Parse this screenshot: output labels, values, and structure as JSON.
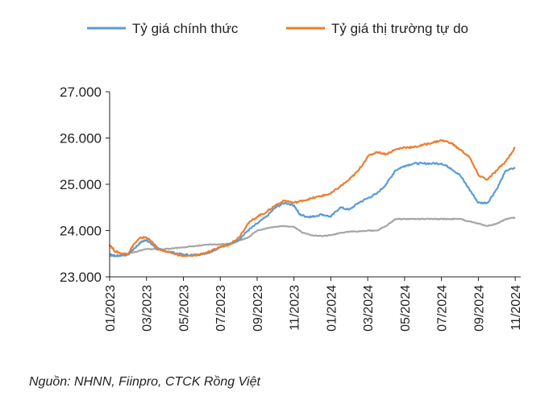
{
  "chart_data": {
    "type": "line",
    "title": "",
    "xlabel": "",
    "ylabel": "",
    "ylim": [
      23000,
      27000
    ],
    "yticks": [
      "23.000",
      "24.000",
      "25.000",
      "26.000",
      "27.000"
    ],
    "ytick_values": [
      23000,
      24000,
      25000,
      26000,
      27000
    ],
    "xticks": [
      "01/2023",
      "03/2023",
      "05/2023",
      "07/2023",
      "09/2023",
      "11/2023",
      "01/2024",
      "03/2024",
      "05/2024",
      "07/2024",
      "09/2024",
      "11/2024"
    ],
    "xtick_values": [
      0,
      2,
      4,
      6,
      8,
      10,
      12,
      14,
      16,
      18,
      20,
      22
    ],
    "x_unit": "month index from 01/2023",
    "legend_position": "top",
    "grid": false,
    "series": [
      {
        "name": "Tỷ giá chính thức",
        "color": "#5b9bd5",
        "points": [
          [
            0,
            23500
          ],
          [
            0.3,
            23450
          ],
          [
            0.7,
            23470
          ],
          [
            1,
            23480
          ],
          [
            1.3,
            23600
          ],
          [
            1.7,
            23750
          ],
          [
            2,
            23800
          ],
          [
            2.3,
            23700
          ],
          [
            2.6,
            23600
          ],
          [
            3,
            23560
          ],
          [
            3.5,
            23520
          ],
          [
            4,
            23480
          ],
          [
            4.5,
            23470
          ],
          [
            5,
            23490
          ],
          [
            5.5,
            23540
          ],
          [
            6,
            23650
          ],
          [
            6.5,
            23700
          ],
          [
            7,
            23800
          ],
          [
            7.5,
            24000
          ],
          [
            8,
            24150
          ],
          [
            8.5,
            24300
          ],
          [
            9,
            24500
          ],
          [
            9.5,
            24600
          ],
          [
            10,
            24550
          ],
          [
            10.3,
            24350
          ],
          [
            10.7,
            24300
          ],
          [
            11,
            24300
          ],
          [
            11.5,
            24350
          ],
          [
            12,
            24300
          ],
          [
            12.5,
            24500
          ],
          [
            13,
            24450
          ],
          [
            13.5,
            24600
          ],
          [
            14,
            24700
          ],
          [
            14.5,
            24800
          ],
          [
            15,
            25000
          ],
          [
            15.5,
            25300
          ],
          [
            16,
            25400
          ],
          [
            16.5,
            25450
          ],
          [
            17,
            25450
          ],
          [
            17.5,
            25450
          ],
          [
            18,
            25450
          ],
          [
            18.5,
            25350
          ],
          [
            19,
            25200
          ],
          [
            19.5,
            24900
          ],
          [
            20,
            24600
          ],
          [
            20.5,
            24600
          ],
          [
            21,
            24900
          ],
          [
            21.5,
            25300
          ],
          [
            22,
            25350
          ]
        ]
      },
      {
        "name": "Tỷ giá thị trường tự do",
        "color": "#ed7d31",
        "points": [
          [
            0,
            23700
          ],
          [
            0.3,
            23550
          ],
          [
            0.7,
            23500
          ],
          [
            1,
            23500
          ],
          [
            1.3,
            23700
          ],
          [
            1.7,
            23850
          ],
          [
            2,
            23850
          ],
          [
            2.3,
            23750
          ],
          [
            2.6,
            23620
          ],
          [
            3,
            23550
          ],
          [
            3.5,
            23500
          ],
          [
            4,
            23450
          ],
          [
            4.5,
            23450
          ],
          [
            5,
            23500
          ],
          [
            5.5,
            23550
          ],
          [
            6,
            23650
          ],
          [
            6.5,
            23700
          ],
          [
            7,
            23850
          ],
          [
            7.5,
            24150
          ],
          [
            8,
            24300
          ],
          [
            8.5,
            24400
          ],
          [
            9,
            24550
          ],
          [
            9.5,
            24650
          ],
          [
            10,
            24600
          ],
          [
            10.5,
            24650
          ],
          [
            11,
            24700
          ],
          [
            11.5,
            24750
          ],
          [
            12,
            24800
          ],
          [
            12.5,
            24950
          ],
          [
            13,
            25100
          ],
          [
            13.5,
            25300
          ],
          [
            14,
            25600
          ],
          [
            14.5,
            25700
          ],
          [
            15,
            25650
          ],
          [
            15.5,
            25750
          ],
          [
            16,
            25800
          ],
          [
            16.5,
            25800
          ],
          [
            17,
            25850
          ],
          [
            17.5,
            25900
          ],
          [
            18,
            25950
          ],
          [
            18.5,
            25900
          ],
          [
            19,
            25750
          ],
          [
            19.5,
            25600
          ],
          [
            20,
            25200
          ],
          [
            20.5,
            25100
          ],
          [
            21,
            25300
          ],
          [
            21.5,
            25500
          ],
          [
            22,
            25800
          ]
        ]
      },
      {
        "name": "",
        "color": "#a6a6a6",
        "points": [
          [
            0,
            23450
          ],
          [
            0.5,
            23450
          ],
          [
            1,
            23500
          ],
          [
            1.5,
            23550
          ],
          [
            2,
            23600
          ],
          [
            2.5,
            23600
          ],
          [
            3,
            23600
          ],
          [
            3.5,
            23620
          ],
          [
            4,
            23640
          ],
          [
            4.5,
            23660
          ],
          [
            5,
            23680
          ],
          [
            5.5,
            23700
          ],
          [
            6,
            23700
          ],
          [
            6.5,
            23720
          ],
          [
            7,
            23780
          ],
          [
            7.5,
            23850
          ],
          [
            8,
            24000
          ],
          [
            8.5,
            24050
          ],
          [
            9,
            24080
          ],
          [
            9.5,
            24100
          ],
          [
            10,
            24080
          ],
          [
            10.5,
            23950
          ],
          [
            11,
            23900
          ],
          [
            11.5,
            23880
          ],
          [
            12,
            23900
          ],
          [
            12.5,
            23950
          ],
          [
            13,
            23980
          ],
          [
            13.5,
            23980
          ],
          [
            14,
            24000
          ],
          [
            14.5,
            24000
          ],
          [
            15,
            24100
          ],
          [
            15.5,
            24250
          ],
          [
            16,
            24250
          ],
          [
            16.5,
            24250
          ],
          [
            17,
            24250
          ],
          [
            17.5,
            24250
          ],
          [
            18,
            24250
          ],
          [
            18.5,
            24250
          ],
          [
            19,
            24250
          ],
          [
            19.5,
            24200
          ],
          [
            20,
            24150
          ],
          [
            20.5,
            24100
          ],
          [
            21,
            24150
          ],
          [
            21.5,
            24250
          ],
          [
            22,
            24280
          ]
        ]
      }
    ]
  },
  "source": "Nguồn: NHNN, Fiinpro, CTCK Rồng Việt"
}
